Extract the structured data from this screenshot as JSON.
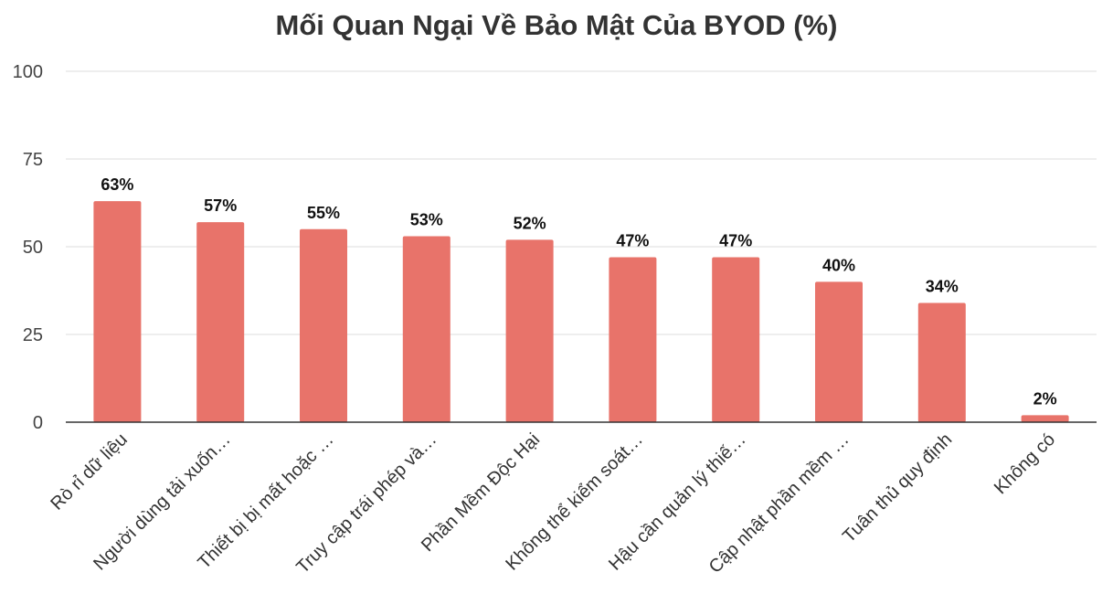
{
  "chart_data": {
    "type": "bar",
    "title": "Mối Quan Ngại Về Bảo Mật Của BYOD (%)",
    "xlabel": "",
    "ylabel": "",
    "ylim": [
      0,
      100
    ],
    "yticks": [
      0,
      25,
      50,
      75,
      100
    ],
    "grid": true,
    "bar_color": "#e8736a",
    "categories": [
      "Rò rỉ dữ liệu",
      "Người dùng tải xuốn…",
      "Thiết bị bị mất hoặc …",
      "Truy cập trái phép và…",
      "Phần Mềm Độc Hại",
      "Không thể kiểm soát…",
      "Hậu cần quản lý thiế…",
      "Cập nhật phần mềm …",
      "Tuân thủ quy định",
      "Không có"
    ],
    "values": [
      63,
      57,
      55,
      53,
      52,
      47,
      47,
      40,
      34,
      2
    ],
    "data_labels": [
      "63%",
      "57%",
      "55%",
      "53%",
      "52%",
      "47%",
      "47%",
      "40%",
      "34%",
      "2%"
    ]
  }
}
